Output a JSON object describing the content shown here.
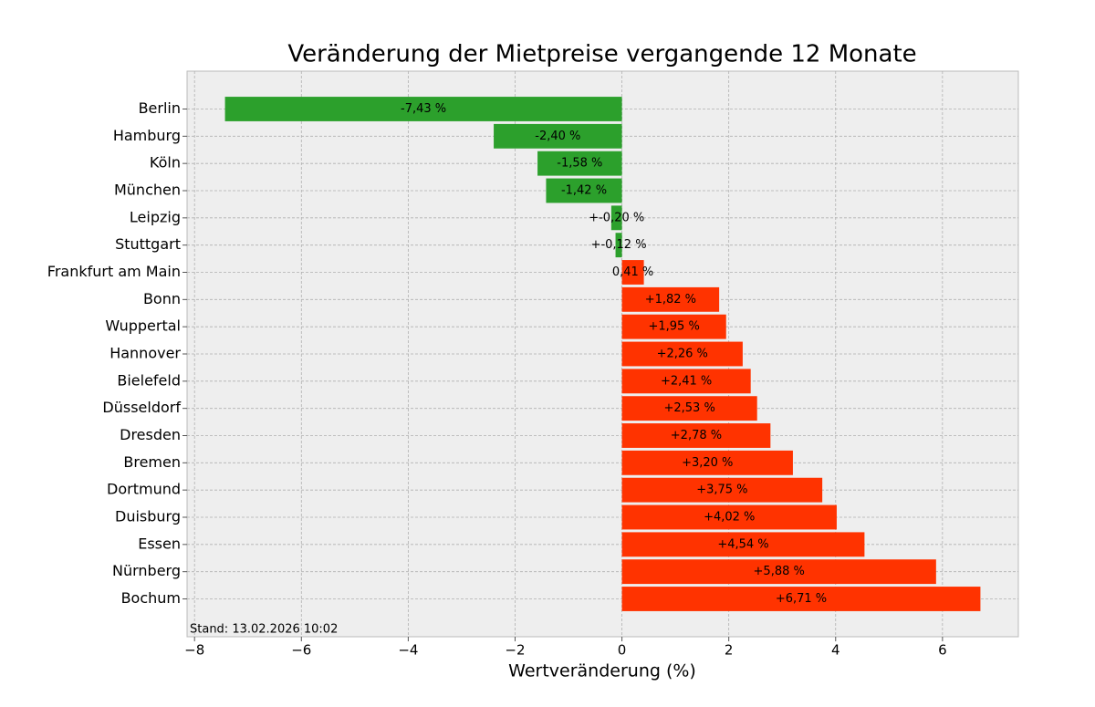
{
  "chart_data": {
    "type": "barh",
    "title": "Veränderung der Mietpreise vergangende 12 Monate",
    "x_label": "Wertveränderung (%)",
    "annotation": "Stand: 13.02.2026 10:02",
    "categories": [
      "Berlin",
      "Hamburg",
      "Köln",
      "München",
      "Leipzig",
      "Stuttgart",
      "Frankfurt am Main",
      "Bonn",
      "Wuppertal",
      "Hannover",
      "Bielefeld",
      "Düsseldorf",
      "Dresden",
      "Bremen",
      "Dortmund",
      "Duisburg",
      "Essen",
      "Nürnberg",
      "Bochum"
    ],
    "values": [
      -7.43,
      -2.4,
      -1.58,
      -1.42,
      -0.2,
      -0.12,
      0.41,
      1.82,
      1.95,
      2.26,
      2.41,
      2.53,
      2.78,
      3.2,
      3.75,
      4.02,
      4.54,
      5.88,
      6.71
    ],
    "value_labels": [
      "-7,43 %",
      "-2,40 %",
      "-1,58 %",
      "-1,42 %",
      "+-0,20 %",
      "+-0,12 %",
      "0,41 %",
      "+1,82 %",
      "+1,95 %",
      "+2,26 %",
      "+2,41 %",
      "+2,53 %",
      "+2,78 %",
      "+3,20 %",
      "+3,75 %",
      "+4,02 %",
      "+4,54 %",
      "+5,88 %",
      "+6,71 %"
    ],
    "colors": [
      "#2ca02c",
      "#2ca02c",
      "#2ca02c",
      "#2ca02c",
      "#2ca02c",
      "#2ca02c",
      "#ff3300",
      "#ff3300",
      "#ff3300",
      "#ff3300",
      "#ff3300",
      "#ff3300",
      "#ff3300",
      "#ff3300",
      "#ff3300",
      "#ff3300",
      "#ff3300",
      "#ff3300",
      "#ff3300"
    ],
    "xlim": [
      -8.14,
      7.42
    ],
    "xticks": [
      {
        "value": -8,
        "label": "−8"
      },
      {
        "value": -6,
        "label": "−6"
      },
      {
        "value": -4,
        "label": "−4"
      },
      {
        "value": -2,
        "label": "−2"
      },
      0,
      2,
      4,
      6
    ],
    "grid": true
  }
}
